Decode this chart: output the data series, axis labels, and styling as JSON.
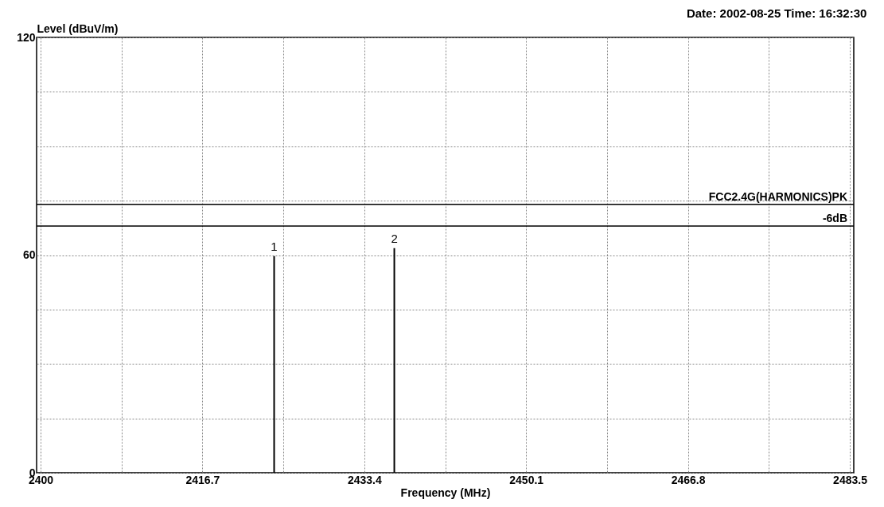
{
  "chart_data": {
    "type": "bar",
    "xlabel": "Frequency (MHz)",
    "ylabel": "Level (dBuV/m)",
    "x": [
      2424.1,
      2436.5
    ],
    "series": [
      {
        "color": "#000000",
        "values": [
          59.7,
          61.9
        ]
      }
    ],
    "xlim": [
      2400,
      2483.5
    ],
    "xticks": [
      2400,
      {
        "value": 2408.35,
        "label": null
      },
      2416.7,
      {
        "value": 2425.05,
        "label": null
      },
      2433.4,
      {
        "value": 2441.75,
        "label": null
      },
      2450.1,
      {
        "value": 2458.45,
        "label": null
      },
      2466.8,
      {
        "value": 2475.15,
        "label": null
      },
      2483.5
    ],
    "ylim": [
      0,
      120
    ],
    "yticks": [
      0,
      {
        "value": 15,
        "label": null
      },
      {
        "value": 30,
        "label": null
      },
      {
        "value": 45,
        "label": null
      },
      60,
      {
        "value": 75,
        "label": null
      },
      {
        "value": 90,
        "label": null
      },
      {
        "value": 105,
        "label": null
      },
      120
    ],
    "grid": true,
    "ref_lines": [
      {
        "axis": "y",
        "value": 74,
        "label": "FCC2.4G(HARMONICS)PK",
        "color": "#000000"
      },
      {
        "axis": "y",
        "value": 68,
        "label": "-6dB",
        "color": "#000000"
      }
    ],
    "annotations": [
      "Date: 2002-08-25  Time: 16:32:30",
      {
        "text": "1",
        "x": 2424.1,
        "y": 59.7
      },
      {
        "text": "2",
        "x": 2436.5,
        "y": 61.9
      }
    ]
  }
}
